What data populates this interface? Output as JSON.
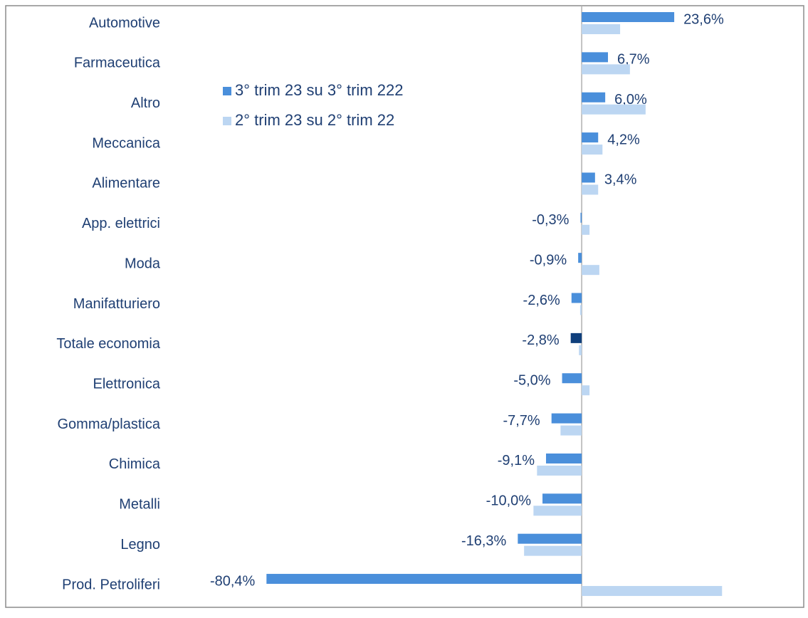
{
  "chart_data": {
    "type": "hbar",
    "categories": [
      "Automotive",
      "Farmaceutica",
      "Altro",
      "Meccanica",
      "Alimentare",
      "App. elettrici",
      "Moda",
      "Manifatturiero",
      "Totale economia",
      "Elettronica",
      "Gomma/plastica",
      "Chimica",
      "Metalli",
      "Legno",
      "Prod. Petroliferi"
    ],
    "series": [
      {
        "name": "3° trim 23 su 3° trim 222",
        "color": "#4a8fdb",
        "colors": [
          "#4a8fdb",
          "#4a8fdb",
          "#4a8fdb",
          "#4a8fdb",
          "#4a8fdb",
          "#4a8fdb",
          "#4a8fdb",
          "#4a8fdb",
          "#0f3f7c",
          "#4a8fdb",
          "#4a8fdb",
          "#4a8fdb",
          "#4a8fdb",
          "#4a8fdb",
          "#4a8fdb"
        ],
        "values": [
          23.6,
          6.7,
          6.0,
          4.2,
          3.4,
          -0.3,
          -0.9,
          -2.6,
          -2.8,
          -5.0,
          -7.7,
          -9.1,
          -10.0,
          -16.3,
          -80.4
        ],
        "value_labels": [
          "23,6%",
          "6,7%",
          "6,0%",
          "4,2%",
          "3,4%",
          "-0,3%",
          "-0,9%",
          "-2,6%",
          "-2,8%",
          "-5,0%",
          "-7,7%",
          "-9,1%",
          "-10,0%",
          "-16,3%",
          "-80,4%"
        ]
      },
      {
        "name": "2° trim 23 su 2° trim 22",
        "color": "#bcd6f2",
        "values": [
          9.8,
          12.3,
          16.3,
          5.3,
          4.2,
          2.0,
          4.5,
          -0.4,
          -0.7,
          2.0,
          -5.4,
          -11.4,
          -12.3,
          -14.7,
          35.8
        ]
      }
    ],
    "xlim": [
      -85,
      55
    ]
  }
}
